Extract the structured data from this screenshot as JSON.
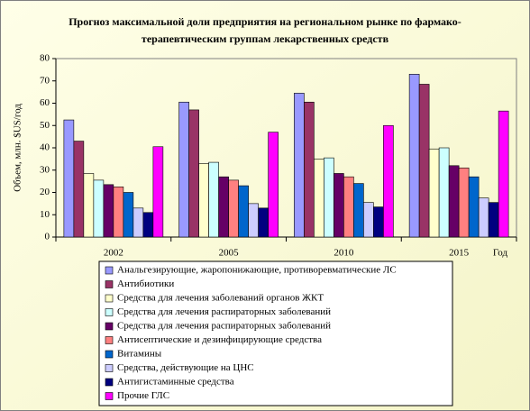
{
  "chart_data": {
    "type": "bar",
    "title": [
      "Прогноз максимальной доли предприятия на региональном рынке по фармако-",
      "терапевтическим группам лекарственных средств"
    ],
    "y_label": "Объем, млн. $US/год",
    "x_label": "Год",
    "categories": [
      "2002",
      "2005",
      "2010",
      "2015"
    ],
    "series": [
      {
        "name": "Анальгезирующие, жаропонижающие, противоревматические ЛС",
        "color": "#9999ff",
        "values": [
          52.5,
          60.5,
          64.5,
          73
        ]
      },
      {
        "name": "Антибиотики",
        "color": "#993366",
        "values": [
          43,
          57,
          60.5,
          68.5
        ]
      },
      {
        "name": "Средства для лечения заболеваний органов ЖКТ",
        "color": "#ffffcc",
        "values": [
          28.5,
          33,
          35,
          39.5
        ]
      },
      {
        "name": "Средства для лечения распираторных заболеваний",
        "color": "#ccffff",
        "values": [
          25.5,
          33.5,
          35.5,
          40
        ]
      },
      {
        "name": "Средства для лечения распираторных заболеваний",
        "color": "#660066",
        "values": [
          23.5,
          27,
          28.5,
          32
        ]
      },
      {
        "name": "Антисептические и дезинфицирующие средства",
        "color": "#ff8080",
        "values": [
          22.5,
          25.5,
          27,
          31
        ]
      },
      {
        "name": "Витамины",
        "color": "#0066cc",
        "values": [
          20,
          23,
          24,
          27
        ]
      },
      {
        "name": "Средства, действующие на ЦНС",
        "color": "#ccccff",
        "values": [
          13,
          15,
          15.5,
          17.5
        ]
      },
      {
        "name": "Антигистаминные средства",
        "color": "#000080",
        "values": [
          11,
          13,
          13.5,
          15.5
        ]
      },
      {
        "name": "Прочие ГЛС",
        "color": "#ff00ff",
        "values": [
          40.5,
          47,
          50,
          56.5
        ]
      }
    ],
    "ylim": [
      0,
      80
    ],
    "yticks": [
      0,
      10,
      20,
      30,
      40,
      50,
      60,
      70,
      80
    ]
  }
}
